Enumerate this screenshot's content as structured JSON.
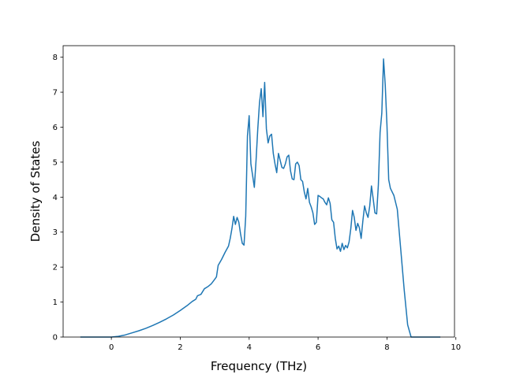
{
  "chart_data": {
    "type": "line",
    "xlabel": "Frequency (THz)",
    "ylabel": "Density of States",
    "xlim": [
      -1.4,
      9.96
    ],
    "ylim": [
      0,
      8.33
    ],
    "xticks": [
      0,
      2,
      4,
      6,
      8,
      10
    ],
    "yticks": [
      0,
      1,
      2,
      3,
      4,
      5,
      6,
      7,
      8
    ],
    "grid": false,
    "line_color": "#1f77b4",
    "series": [
      {
        "x": [
          -0.9,
          -0.5,
          0.0,
          0.2,
          0.4,
          0.6,
          0.8,
          1.0,
          1.2,
          1.4,
          1.6,
          1.8,
          2.0,
          2.2,
          2.35,
          2.45,
          2.5,
          2.6,
          2.7,
          2.8,
          2.9,
          3.0,
          3.05,
          3.1,
          3.2,
          3.3,
          3.4,
          3.45,
          3.5,
          3.55,
          3.6,
          3.65,
          3.7,
          3.75,
          3.8,
          3.85,
          3.9,
          3.95,
          4.0,
          4.05,
          4.1,
          4.15,
          4.2,
          4.25,
          4.3,
          4.35,
          4.4,
          4.45,
          4.5,
          4.55,
          4.6,
          4.65,
          4.7,
          4.75,
          4.8,
          4.85,
          4.9,
          4.95,
          5.0,
          5.05,
          5.1,
          5.15,
          5.2,
          5.25,
          5.3,
          5.35,
          5.4,
          5.45,
          5.5,
          5.55,
          5.6,
          5.65,
          5.7,
          5.75,
          5.8,
          5.85,
          5.9,
          5.95,
          6.0,
          6.05,
          6.1,
          6.15,
          6.2,
          6.25,
          6.3,
          6.35,
          6.4,
          6.45,
          6.5,
          6.55,
          6.6,
          6.65,
          6.7,
          6.75,
          6.8,
          6.85,
          6.9,
          6.95,
          7.0,
          7.05,
          7.1,
          7.15,
          7.2,
          7.25,
          7.3,
          7.35,
          7.4,
          7.45,
          7.5,
          7.55,
          7.6,
          7.65,
          7.7,
          7.75,
          7.8,
          7.85,
          7.9,
          7.95,
          8.0,
          8.05,
          8.1,
          8.2,
          8.3,
          8.4,
          8.5,
          8.6,
          8.7,
          9.0,
          9.3,
          9.55
        ],
        "y": [
          0.0,
          0.0,
          0.0,
          0.02,
          0.06,
          0.12,
          0.18,
          0.25,
          0.33,
          0.42,
          0.52,
          0.63,
          0.76,
          0.9,
          1.02,
          1.08,
          1.18,
          1.22,
          1.38,
          1.44,
          1.52,
          1.65,
          1.72,
          2.05,
          2.22,
          2.42,
          2.6,
          2.82,
          3.1,
          3.45,
          3.22,
          3.42,
          3.28,
          2.95,
          2.68,
          2.63,
          3.45,
          5.75,
          6.33,
          4.95,
          4.62,
          4.28,
          5.05,
          5.95,
          6.7,
          7.1,
          6.3,
          7.28,
          5.95,
          5.55,
          5.75,
          5.8,
          5.25,
          4.95,
          4.7,
          5.25,
          5.05,
          4.85,
          4.82,
          4.95,
          5.15,
          5.2,
          4.75,
          4.52,
          4.5,
          4.95,
          5.0,
          4.9,
          4.5,
          4.45,
          4.15,
          3.95,
          4.25,
          3.85,
          3.72,
          3.55,
          3.22,
          3.28,
          4.05,
          4.02,
          3.98,
          3.95,
          3.85,
          3.78,
          3.98,
          3.82,
          3.35,
          3.28,
          2.82,
          2.52,
          2.6,
          2.45,
          2.68,
          2.5,
          2.62,
          2.55,
          2.72,
          3.1,
          3.62,
          3.42,
          3.05,
          3.25,
          3.12,
          2.82,
          3.32,
          3.75,
          3.55,
          3.42,
          3.75,
          4.32,
          3.95,
          3.55,
          3.52,
          4.35,
          5.85,
          6.4,
          7.95,
          7.2,
          6.05,
          4.5,
          4.25,
          4.05,
          3.65,
          2.5,
          1.35,
          0.35,
          0.0,
          0.0,
          0.0,
          0.0
        ]
      }
    ]
  }
}
